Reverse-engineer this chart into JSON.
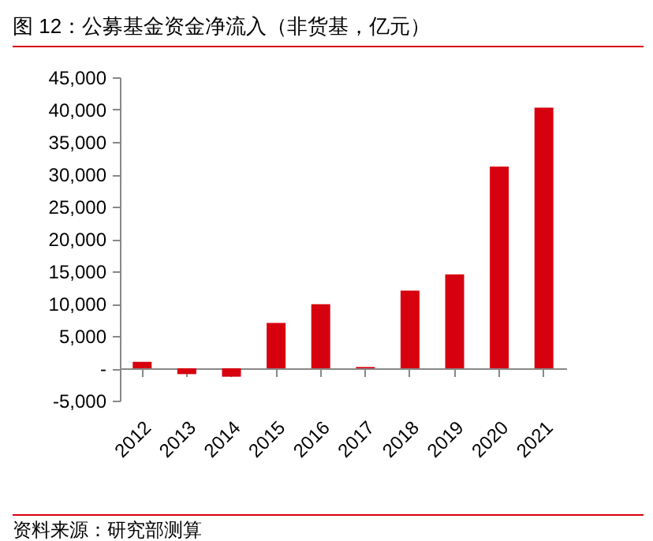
{
  "chart_data": {
    "type": "bar",
    "title": "图 12：公募基金资金净流入（非货基，亿元）",
    "categories": [
      "2012",
      "2013",
      "2014",
      "2015",
      "2016",
      "2017",
      "2018",
      "2019",
      "2020",
      "2021"
    ],
    "values": [
      1000,
      -900,
      -1300,
      7000,
      9900,
      200,
      12000,
      14500,
      31200,
      40300
    ],
    "color": "#d7000f",
    "ylim": [
      -5000,
      45000
    ],
    "yticks": [
      {
        "value": -5000,
        "label": "-5,000"
      },
      {
        "value": 0,
        "label": "-"
      },
      {
        "value": 5000,
        "label": "5,000"
      },
      {
        "value": 10000,
        "label": "10,000"
      },
      {
        "value": 15000,
        "label": "15,000"
      },
      {
        "value": 20000,
        "label": "20,000"
      },
      {
        "value": 25000,
        "label": "25,000"
      },
      {
        "value": 30000,
        "label": "30,000"
      },
      {
        "value": 35000,
        "label": "35,000"
      },
      {
        "value": 40000,
        "label": "40,000"
      },
      {
        "value": 45000,
        "label": "45,000"
      }
    ],
    "grid": false,
    "annotations": [
      "资料来源：研究部测算"
    ]
  }
}
